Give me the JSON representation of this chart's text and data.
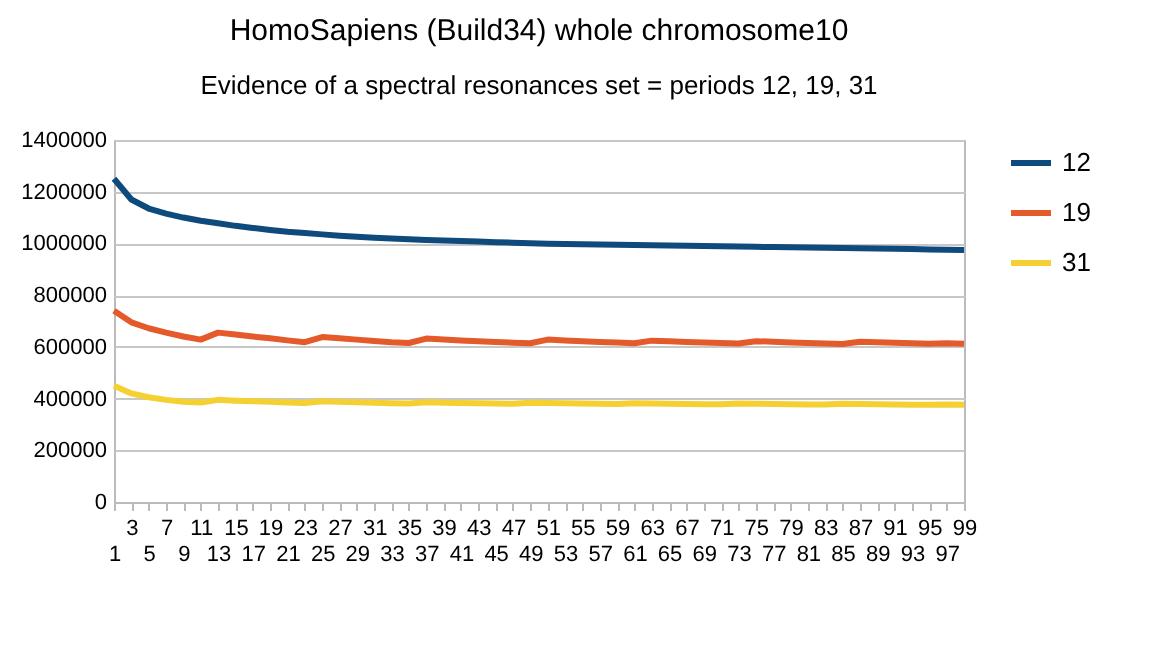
{
  "chart_data": {
    "type": "line",
    "title": "HomoSapiens  (Build34) whole chromosome10",
    "subtitle": "Evidence of a spectral resonances set = periods 12, 19, 31",
    "categories": [
      "1",
      "3",
      "5",
      "7",
      "9",
      "11",
      "13",
      "15",
      "17",
      "19",
      "21",
      "23",
      "25",
      "27",
      "29",
      "31",
      "33",
      "35",
      "37",
      "39",
      "41",
      "43",
      "45",
      "47",
      "49",
      "51",
      "53",
      "55",
      "57",
      "59",
      "61",
      "63",
      "65",
      "67",
      "69",
      "71",
      "73",
      "75",
      "77",
      "79",
      "81",
      "83",
      "85",
      "87",
      "89",
      "91",
      "93",
      "95",
      "97",
      "99"
    ],
    "series": [
      {
        "name": "12",
        "color": "#0e4a7b",
        "values": [
          1250000,
          1170000,
          1135000,
          1115000,
          1100000,
          1088000,
          1078000,
          1068000,
          1060000,
          1052000,
          1045000,
          1040000,
          1035000,
          1030000,
          1026000,
          1022000,
          1019000,
          1016000,
          1013000,
          1011000,
          1009000,
          1007000,
          1005000,
          1003000,
          1001000,
          999000,
          998000,
          997000,
          996000,
          995000,
          994000,
          993000,
          992000,
          991000,
          990000,
          989000,
          988000,
          987000,
          986000,
          985000,
          984000,
          983000,
          982000,
          981000,
          980000,
          979000,
          978000,
          977000,
          976000,
          975000
        ]
      },
      {
        "name": "19",
        "color": "#e45a2a",
        "values": [
          740000,
          695000,
          672000,
          655000,
          640000,
          628000,
          655000,
          648000,
          640000,
          633000,
          625000,
          618000,
          638000,
          633000,
          628000,
          623000,
          618000,
          615000,
          632000,
          628000,
          625000,
          622000,
          619000,
          616000,
          614000,
          628000,
          625000,
          622000,
          619000,
          617000,
          614000,
          624000,
          622000,
          619000,
          617000,
          615000,
          613000,
          622000,
          620000,
          617000,
          615000,
          613000,
          611000,
          620000,
          618000,
          616000,
          614000,
          612000,
          614000,
          612000
        ]
      },
      {
        "name": "31",
        "color": "#f5d033",
        "values": [
          450000,
          420000,
          405000,
          395000,
          388000,
          385000,
          395000,
          392000,
          390000,
          388000,
          385000,
          383000,
          390000,
          388000,
          386000,
          384000,
          382000,
          381000,
          386000,
          384000,
          383000,
          382000,
          381000,
          380000,
          384000,
          383000,
          382000,
          381000,
          380000,
          379000,
          382000,
          381000,
          380000,
          379000,
          378000,
          378000,
          381000,
          380000,
          379000,
          378000,
          377000,
          377000,
          380000,
          379000,
          378000,
          377000,
          376000,
          376000,
          377000,
          376000
        ]
      }
    ],
    "ylim": [
      0,
      1400000
    ],
    "yticks": [
      0,
      200000,
      400000,
      600000,
      800000,
      1000000,
      1200000,
      1400000
    ],
    "grid": "y",
    "legend": "right",
    "marker": "none",
    "line_style": "solid"
  }
}
